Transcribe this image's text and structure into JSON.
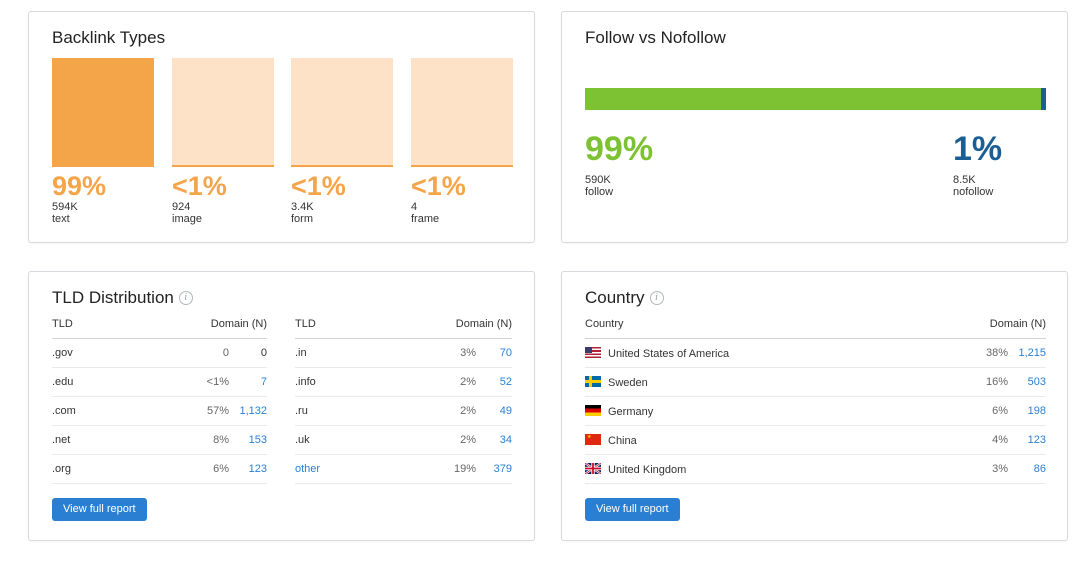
{
  "backlink_types": {
    "title": "Backlink Types",
    "items": [
      {
        "pct": "99%",
        "count": "594K",
        "label": "text"
      },
      {
        "pct": "<1%",
        "count": "924",
        "label": "image"
      },
      {
        "pct": "<1%",
        "count": "3.4K",
        "label": "form"
      },
      {
        "pct": "<1%",
        "count": "4",
        "label": "frame"
      }
    ]
  },
  "follow_nofollow": {
    "title": "Follow vs Nofollow",
    "follow_share": 0.99,
    "follow": {
      "pct": "99%",
      "count": "590K",
      "label": "follow"
    },
    "nofollow": {
      "pct": "1%",
      "count": "8.5K",
      "label": "nofollow"
    }
  },
  "tld_distribution": {
    "title": "TLD Distribution",
    "col_tld": "TLD",
    "col_domain": "Domain (N)",
    "left_rows": [
      {
        "tld": ".gov",
        "pct": "0",
        "count": "0"
      },
      {
        "tld": ".edu",
        "pct": "<1%",
        "count": "7"
      },
      {
        "tld": ".com",
        "pct": "57%",
        "count": "1,132"
      },
      {
        "tld": ".net",
        "pct": "8%",
        "count": "153"
      },
      {
        "tld": ".org",
        "pct": "6%",
        "count": "123"
      }
    ],
    "right_rows": [
      {
        "tld": ".in",
        "pct": "3%",
        "count": "70"
      },
      {
        "tld": ".info",
        "pct": "2%",
        "count": "52"
      },
      {
        "tld": ".ru",
        "pct": "2%",
        "count": "49"
      },
      {
        "tld": ".uk",
        "pct": "2%",
        "count": "34"
      },
      {
        "tld": "other",
        "pct": "19%",
        "count": "379"
      }
    ],
    "button": "View full report"
  },
  "country": {
    "title": "Country",
    "col_country": "Country",
    "col_domain": "Domain (N)",
    "rows": [
      {
        "flag": "us-flag-icon",
        "name": "United States of America",
        "pct": "38%",
        "count": "1,215"
      },
      {
        "flag": "se-flag-icon",
        "name": "Sweden",
        "pct": "16%",
        "count": "503"
      },
      {
        "flag": "de-flag-icon",
        "name": "Germany",
        "pct": "6%",
        "count": "198"
      },
      {
        "flag": "cn-flag-icon",
        "name": "China",
        "pct": "4%",
        "count": "123"
      },
      {
        "flag": "gb-flag-icon",
        "name": "United Kingdom",
        "pct": "3%",
        "count": "86"
      }
    ],
    "button": "View full report"
  },
  "colors": {
    "orange": "#f4a54a",
    "orange_light": "#fde2c8",
    "green": "#7cc232",
    "navy": "#1b5e94",
    "link_blue": "#2a7fd2"
  }
}
